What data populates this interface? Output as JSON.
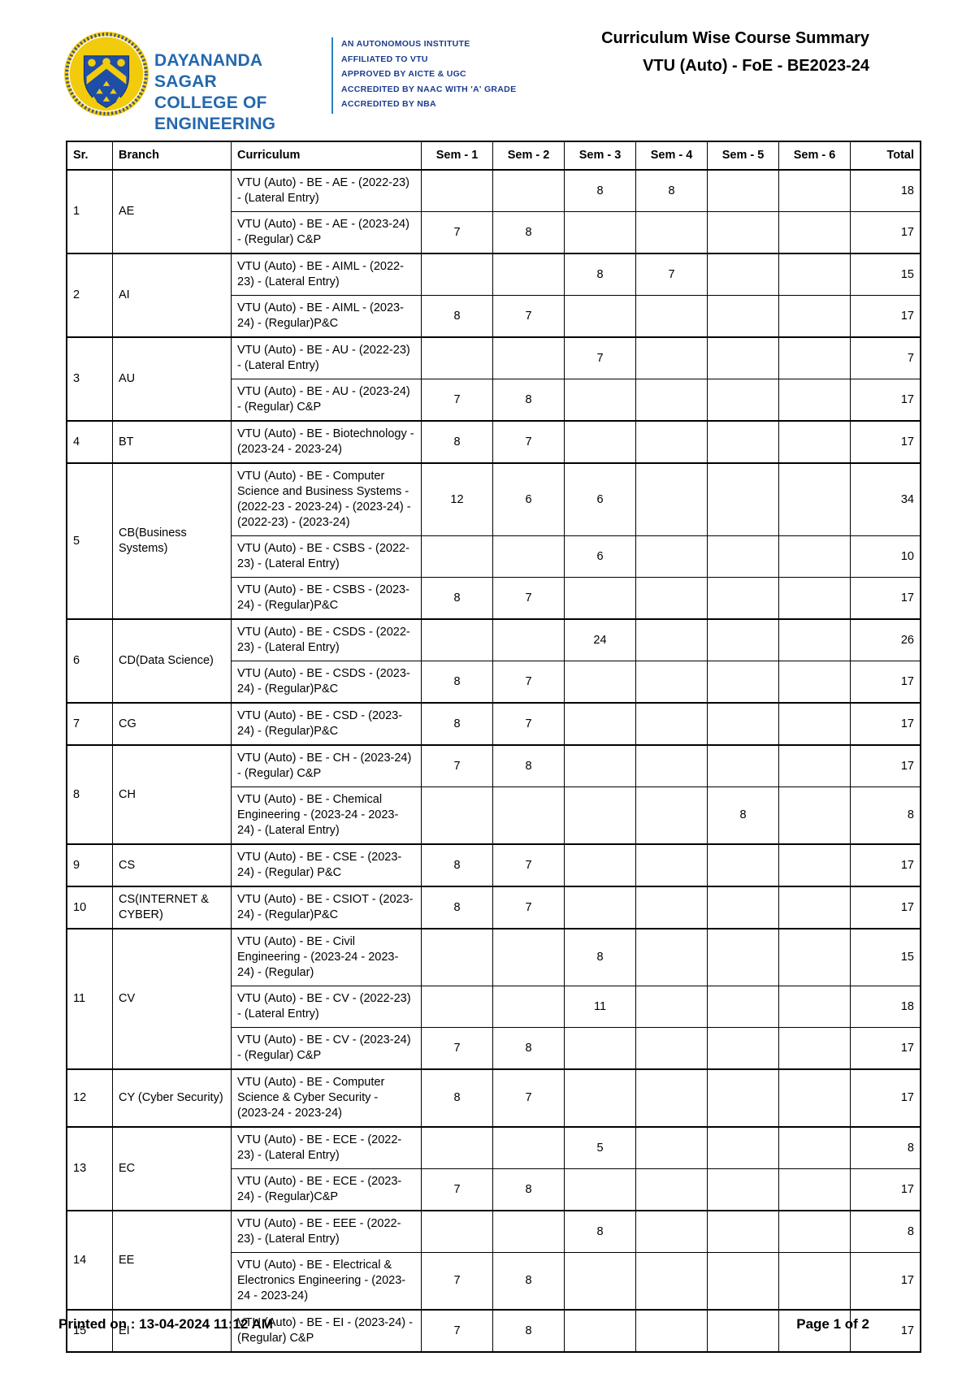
{
  "header": {
    "college_name_line1": "DAYANANDA SAGAR",
    "college_name_line2": "COLLEGE OF ENGINEERING",
    "accreditations": [
      "AN AUTONOMOUS INSTITUTE",
      "AFFILIATED TO VTU",
      "APPROVED BY AICTE & UGC",
      "ACCREDITED BY NAAC WITH 'A' GRADE",
      "ACCREDITED BY NBA"
    ],
    "report_title": "Curriculum Wise Course Summary",
    "report_subtitle": "VTU (Auto) - FoE - BE2023-24"
  },
  "footer": {
    "printed_on": "Printed on : 13-04-2024 11:12 AM",
    "page_number": "Page 1 of 2"
  },
  "colors": {
    "college_blue": "#2468ae",
    "accreditation_navy": "#1c3c8e",
    "divider_blue": "#2d7fc1",
    "logo_yellow": "#f2cc0c",
    "logo_shield_blue": "#1e4ea8",
    "table_border": "#000000"
  },
  "table": {
    "headers": [
      "Sr.",
      "Branch",
      "Curriculum",
      "Sem - 1",
      "Sem - 2",
      "Sem - 3",
      "Sem - 4",
      "Sem - 5",
      "Sem - 6",
      "Total"
    ],
    "groups": [
      {
        "sr": "1",
        "branch": "AE",
        "rows": [
          {
            "curriculum": "VTU (Auto) - BE - AE - (2022-23) - (Lateral Entry)",
            "sems": [
              "",
              "",
              "8",
              "8",
              "",
              ""
            ],
            "total": "18"
          },
          {
            "curriculum": "VTU (Auto) - BE - AE - (2023-24) - (Regular) C&P",
            "sems": [
              "7",
              "8",
              "",
              "",
              "",
              ""
            ],
            "total": "17"
          }
        ]
      },
      {
        "sr": "2",
        "branch": "AI",
        "rows": [
          {
            "curriculum": "VTU (Auto) - BE - AIML - (2022-23) - (Lateral Entry)",
            "sems": [
              "",
              "",
              "8",
              "7",
              "",
              ""
            ],
            "total": "15"
          },
          {
            "curriculum": "VTU (Auto) - BE - AIML - (2023-24) - (Regular)P&C",
            "sems": [
              "8",
              "7",
              "",
              "",
              "",
              ""
            ],
            "total": "17"
          }
        ]
      },
      {
        "sr": "3",
        "branch": "AU",
        "rows": [
          {
            "curriculum": "VTU (Auto) - BE - AU - (2022-23) - (Lateral Entry)",
            "sems": [
              "",
              "",
              "7",
              "",
              "",
              ""
            ],
            "total": "7"
          },
          {
            "curriculum": "VTU (Auto) - BE - AU - (2023-24) - (Regular) C&P",
            "sems": [
              "7",
              "8",
              "",
              "",
              "",
              ""
            ],
            "total": "17"
          }
        ]
      },
      {
        "sr": "4",
        "branch": "BT",
        "rows": [
          {
            "curriculum": "VTU (Auto) - BE - Biotechnology - (2023-24 - 2023-24)",
            "sems": [
              "8",
              "7",
              "",
              "",
              "",
              ""
            ],
            "total": "17"
          }
        ]
      },
      {
        "sr": "5",
        "branch": "CB(Business Systems)",
        "rows": [
          {
            "curriculum": "VTU (Auto) - BE - Computer Science and Business Systems - (2022-23 - 2023-24) - (2023-24) - (2022-23) - (2023-24)",
            "sems": [
              "12",
              "6",
              "6",
              "",
              "",
              ""
            ],
            "total": "34"
          },
          {
            "curriculum": "VTU (Auto) - BE - CSBS - (2022-23) - (Lateral Entry)",
            "sems": [
              "",
              "",
              "6",
              "",
              "",
              ""
            ],
            "total": "10"
          },
          {
            "curriculum": "VTU (Auto) - BE - CSBS - (2023-24) - (Regular)P&C",
            "sems": [
              "8",
              "7",
              "",
              "",
              "",
              ""
            ],
            "total": "17"
          }
        ]
      },
      {
        "sr": "6",
        "branch": "CD(Data Science)",
        "rows": [
          {
            "curriculum": "VTU (Auto) - BE - CSDS - (2022-23) - (Lateral Entry)",
            "sems": [
              "",
              "",
              "24",
              "",
              "",
              ""
            ],
            "total": "26"
          },
          {
            "curriculum": "VTU (Auto) - BE - CSDS - (2023-24) - (Regular)P&C",
            "sems": [
              "8",
              "7",
              "",
              "",
              "",
              ""
            ],
            "total": "17"
          }
        ]
      },
      {
        "sr": "7",
        "branch": "CG",
        "rows": [
          {
            "curriculum": "VTU (Auto) - BE - CSD - (2023-24) - (Regular)P&C",
            "sems": [
              "8",
              "7",
              "",
              "",
              "",
              ""
            ],
            "total": "17"
          }
        ]
      },
      {
        "sr": "8",
        "branch": "CH",
        "rows": [
          {
            "curriculum": "VTU (Auto) - BE - CH - (2023-24) - (Regular) C&P",
            "sems": [
              "7",
              "8",
              "",
              "",
              "",
              ""
            ],
            "total": "17"
          },
          {
            "curriculum": "VTU (Auto) - BE - Chemical Engineering - (2023-24 - 2023-24) - (Lateral Entry)",
            "sems": [
              "",
              "",
              "",
              "",
              "8",
              ""
            ],
            "total": "8"
          }
        ]
      },
      {
        "sr": "9",
        "branch": "CS",
        "rows": [
          {
            "curriculum": "VTU (Auto) - BE - CSE - (2023-24) - (Regular) P&C",
            "sems": [
              "8",
              "7",
              "",
              "",
              "",
              ""
            ],
            "total": "17"
          }
        ]
      },
      {
        "sr": "10",
        "branch": "CS(INTERNET & CYBER)",
        "rows": [
          {
            "curriculum": "VTU (Auto) - BE - CSIOT - (2023-24) - (Regular)P&C",
            "sems": [
              "8",
              "7",
              "",
              "",
              "",
              ""
            ],
            "total": "17"
          }
        ]
      },
      {
        "sr": "11",
        "branch": "CV",
        "rows": [
          {
            "curriculum": "VTU (Auto) - BE - Civil Engineering - (2023-24 - 2023-24) - (Regular)",
            "sems": [
              "",
              "",
              "8",
              "",
              "",
              ""
            ],
            "total": "15"
          },
          {
            "curriculum": "VTU (Auto) - BE - CV - (2022-23) - (Lateral Entry)",
            "sems": [
              "",
              "",
              "11",
              "",
              "",
              ""
            ],
            "total": "18"
          },
          {
            "curriculum": "VTU (Auto) - BE - CV - (2023-24) - (Regular) C&P",
            "sems": [
              "7",
              "8",
              "",
              "",
              "",
              ""
            ],
            "total": "17"
          }
        ]
      },
      {
        "sr": "12",
        "branch": "CY (Cyber Security)",
        "rows": [
          {
            "curriculum": "VTU (Auto) - BE - Computer Science & Cyber Security - (2023-24 - 2023-24)",
            "sems": [
              "8",
              "7",
              "",
              "",
              "",
              ""
            ],
            "total": "17"
          }
        ]
      },
      {
        "sr": "13",
        "branch": "EC",
        "rows": [
          {
            "curriculum": "VTU (Auto) - BE - ECE - (2022-23) - (Lateral Entry)",
            "sems": [
              "",
              "",
              "5",
              "",
              "",
              ""
            ],
            "total": "8"
          },
          {
            "curriculum": "VTU (Auto) - BE - ECE - (2023-24) - (Regular)C&P",
            "sems": [
              "7",
              "8",
              "",
              "",
              "",
              ""
            ],
            "total": "17"
          }
        ]
      },
      {
        "sr": "14",
        "branch": "EE",
        "rows": [
          {
            "curriculum": "VTU (Auto) - BE - EEE - (2022-23) - (Lateral Entry)",
            "sems": [
              "",
              "",
              "8",
              "",
              "",
              ""
            ],
            "total": "8"
          },
          {
            "curriculum": "VTU (Auto) - BE - Electrical & Electronics Engineering - (2023-24 - 2023-24)",
            "sems": [
              "7",
              "8",
              "",
              "",
              "",
              ""
            ],
            "total": "17"
          }
        ]
      },
      {
        "sr": "15",
        "branch": "EI",
        "rows": [
          {
            "curriculum": "VTU (Auto) - BE - EI - (2023-24) - (Regular) C&P",
            "sems": [
              "7",
              "8",
              "",
              "",
              "",
              ""
            ],
            "total": "17"
          }
        ]
      }
    ]
  }
}
